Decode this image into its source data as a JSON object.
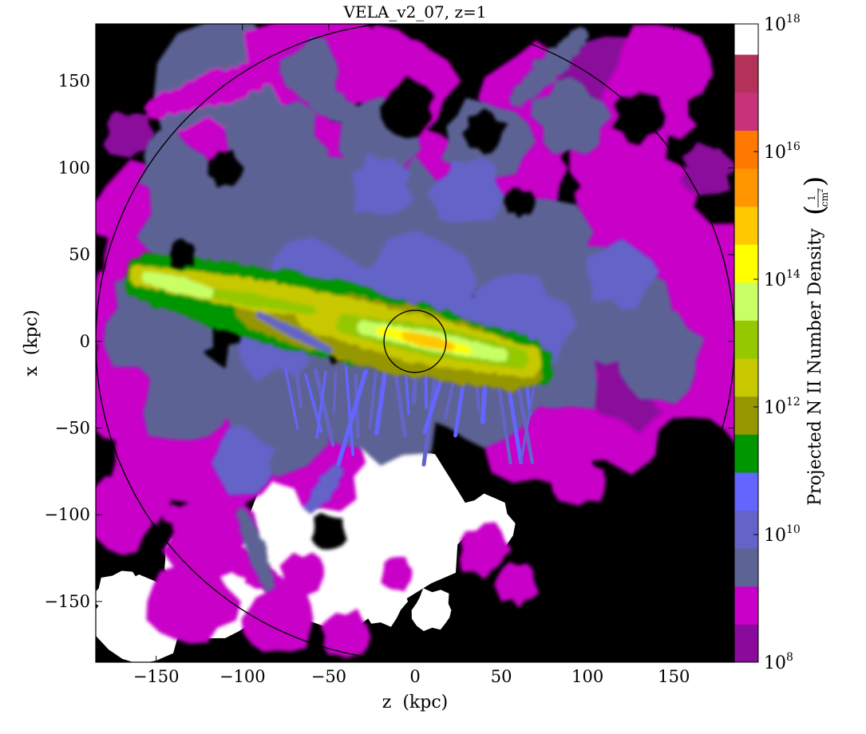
{
  "chart_data": {
    "type": "heatmap",
    "title": "VELA_v2_07, z=1",
    "xlabel": "z  (kpc)",
    "ylabel": "x  (kpc)",
    "xlim": [
      -185,
      185
    ],
    "ylim": [
      -185,
      183
    ],
    "x_ticks": [
      -150,
      -100,
      -50,
      0,
      50,
      100,
      150
    ],
    "y_ticks": [
      150,
      100,
      50,
      0,
      -50,
      -100,
      -150
    ],
    "x_tick_labels": [
      "−150",
      "−100",
      "−50",
      "0",
      "50",
      "100",
      "150"
    ],
    "y_tick_labels": [
      "150",
      "100",
      "50",
      "0",
      "−50",
      "−100",
      "−150"
    ],
    "grid": false,
    "colorbar": {
      "label": "Projected N II Number Density",
      "unit_numerator": "1",
      "unit_denominator": "cm",
      "unit_exponent": "2",
      "scale": "log",
      "range_exp": [
        8,
        18
      ],
      "tick_exps": [
        8,
        10,
        12,
        14,
        16,
        18
      ],
      "tick_base": "10",
      "levels_hex": [
        "#8a0a9b",
        "#c800c8",
        "#5c6494",
        "#6464c8",
        "#6464ff",
        "#009600",
        "#969600",
        "#c8c800",
        "#96c800",
        "#c8ff64",
        "#ffff00",
        "#ffc800",
        "#ff9600",
        "#ff7800",
        "#c8327a",
        "#b4325a",
        "#ffffff"
      ]
    },
    "annotations": [
      {
        "shape": "circle",
        "center_kpc": [
          0,
          0
        ],
        "radius_kpc": 18
      },
      {
        "shape": "arc",
        "center_kpc": [
          0,
          0
        ],
        "radius_kpc": 185
      }
    ],
    "structures": [
      {
        "name": "disk",
        "center_kpc": [
          0,
          0
        ],
        "level_exp": [
          12,
          15
        ]
      },
      {
        "name": "filament-left",
        "from_kpc": [
          -155,
          37
        ],
        "to_kpc": [
          -40,
          15
        ],
        "level_exp": [
          11,
          13
        ]
      },
      {
        "name": "halo-gas",
        "level_exp": [
          8,
          11
        ]
      },
      {
        "name": "empty-region",
        "center_kpc": [
          -40,
          -110
        ],
        "level": "below-range"
      }
    ]
  }
}
